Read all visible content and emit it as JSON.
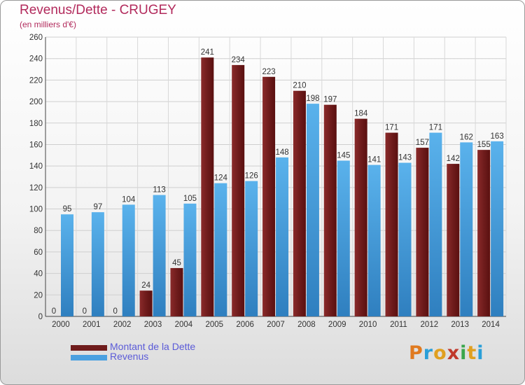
{
  "title": "Revenus/Dette - CRUGEY",
  "subtitle": "(en milliers d'€)",
  "colors": {
    "debt": "#6f1c1c",
    "revenue": "#4aa0e0",
    "title": "#b22a5c",
    "legend_text": "#5b5bd8"
  },
  "chart_data": {
    "type": "bar",
    "categories": [
      "2000",
      "2001",
      "2002",
      "2003",
      "2004",
      "2005",
      "2006",
      "2007",
      "2008",
      "2009",
      "2010",
      "2011",
      "2012",
      "2013",
      "2014"
    ],
    "series": [
      {
        "name": "Montant de la Dette",
        "values": [
          0,
          0,
          0,
          24,
          45,
          241,
          234,
          223,
          210,
          197,
          184,
          171,
          157,
          142,
          155
        ]
      },
      {
        "name": "Revenus",
        "values": [
          95,
          97,
          104,
          113,
          105,
          124,
          126,
          148,
          198,
          145,
          141,
          143,
          171,
          162,
          163
        ]
      }
    ],
    "ylim": [
      0,
      260
    ],
    "yticks": [
      0,
      20,
      40,
      60,
      80,
      100,
      120,
      140,
      160,
      180,
      200,
      220,
      240,
      260
    ],
    "grid": true,
    "legend_position": "bottom-left"
  },
  "legend": {
    "debt_label": "Montant de la Dette",
    "revenue_label": "Revenus"
  },
  "logo": {
    "letters": [
      "P",
      "r",
      "o",
      "x",
      "i",
      "t",
      "i"
    ],
    "letter_colors": [
      "#e07a1f",
      "#2a9fd8",
      "#e0a020",
      "#c0392b",
      "#3aa64c",
      "#e0a020",
      "#2a9fd8"
    ]
  }
}
